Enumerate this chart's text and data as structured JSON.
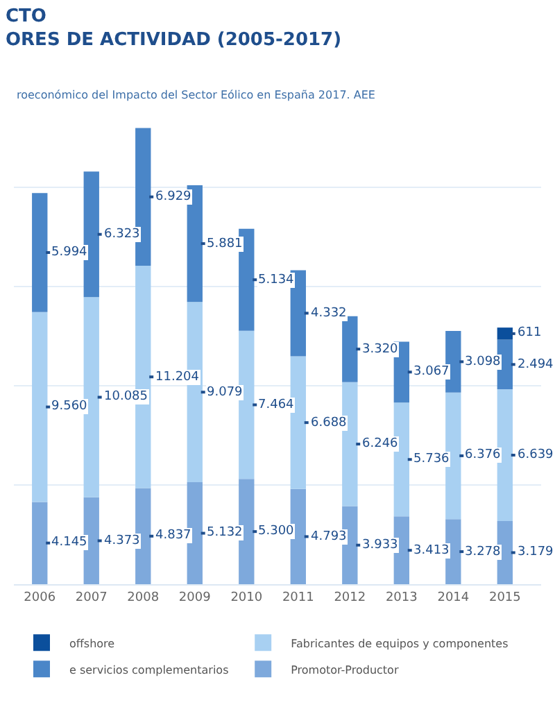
{
  "chart_data": {
    "type": "bar",
    "title": "CTO\nORES DE ACTIVIDAD (2005-2017)",
    "subtitle": "roeconómico del Impacto del Sector Eólico en España 2017. AEE",
    "categories": [
      "2006",
      "2007",
      "2008",
      "2009",
      "2010",
      "2011",
      "2012",
      "2013",
      "2014",
      "2015"
    ],
    "stacked": true,
    "series": [
      {
        "name": "Promotor-Productor",
        "color": "#7ea9dc",
        "values": [
          4145,
          4373,
          4837,
          5132,
          5300,
          4793,
          3933,
          3413,
          3278,
          3179
        ],
        "value_labels": [
          "4.145",
          "4.373",
          "4.837",
          "5.132",
          "5.300",
          "4.793",
          "3.933",
          "3.413",
          "3.278",
          "3.179"
        ]
      },
      {
        "name": "Fabricantes de equipos y componentes",
        "color": "#a8d0f2",
        "values": [
          9560,
          10085,
          11204,
          9079,
          7464,
          6688,
          6246,
          5736,
          6376,
          6639
        ],
        "value_labels": [
          "9.560",
          "10.085",
          "11.204",
          "9.079",
          "7.464",
          "6.688",
          "6.246",
          "5.736",
          "6.376",
          "6.639"
        ]
      },
      {
        "name": "e servicios complementarios",
        "color": "#4a86c8",
        "values": [
          5994,
          6323,
          6929,
          5881,
          5134,
          4332,
          3320,
          3067,
          3098,
          2494
        ],
        "value_labels": [
          "5.994",
          "6.323",
          "6.929",
          "5.881",
          "5.134",
          "4.332",
          "3.320",
          "3.067",
          "3.098",
          "2.494"
        ]
      },
      {
        "name": "offshore",
        "color": "#0b4f9c",
        "values": [
          null,
          null,
          null,
          null,
          null,
          null,
          null,
          null,
          null,
          611
        ],
        "value_labels": [
          null,
          null,
          null,
          null,
          null,
          null,
          null,
          null,
          null,
          "611"
        ]
      }
    ],
    "yticks": [
      {
        "value": 5000,
        "label": null
      },
      {
        "value": 10000,
        "label": null
      },
      {
        "value": 15000,
        "label": null
      },
      {
        "value": 20000,
        "label": null
      }
    ],
    "tick_labels": "x",
    "grid": "y",
    "legend": "bottom"
  }
}
